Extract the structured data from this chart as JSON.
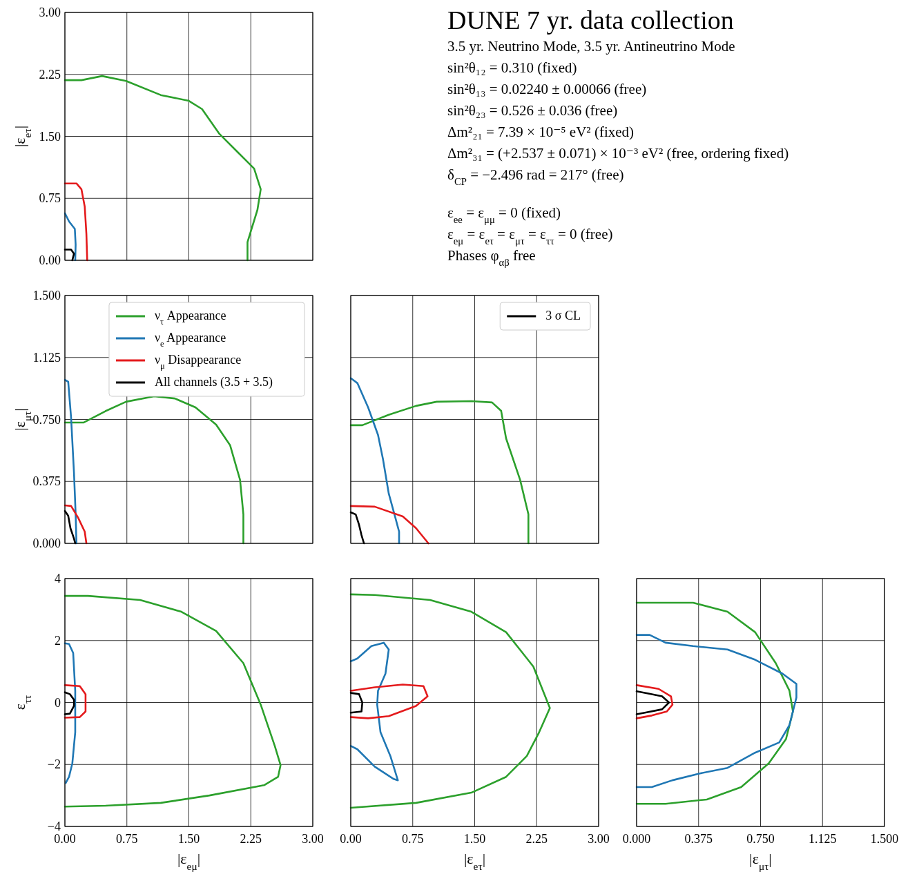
{
  "chart_data": [
    {
      "type": "line",
      "ylabel": "|ε$_{eτ}$|",
      "xlim": [
        0,
        3
      ],
      "xticks": [
        0,
        0.75,
        1.5,
        2.25,
        3
      ],
      "ylim": [
        0,
        3
      ],
      "yticks": [
        {
          "value": 0,
          "label": "0.00"
        },
        {
          "value": 0.75,
          "label": "0.75"
        },
        {
          "value": 1.5,
          "label": "1.50"
        },
        {
          "value": 2.25,
          "label": "2.25"
        },
        {
          "value": 3,
          "label": "3.00"
        }
      ],
      "grid": true,
      "tick_labels": "y",
      "series": [
        {
          "color": "#2ca02c",
          "x": [
            0,
            0.2,
            0.45,
            0.74,
            1.16,
            1.5,
            1.66,
            1.87,
            2.08,
            2.29,
            2.37,
            2.33,
            2.21,
            2.21
          ],
          "values": [
            2.18,
            2.18,
            2.23,
            2.17,
            2.0,
            1.93,
            1.83,
            1.53,
            1.32,
            1.11,
            0.86,
            0.61,
            0.22,
            0
          ]
        },
        {
          "color": "#1f77b4",
          "x": [
            0,
            0.05,
            0.12,
            0.13,
            0.125
          ],
          "values": [
            0.57,
            0.47,
            0.38,
            0.19,
            0
          ]
        },
        {
          "color": "#e41a1c",
          "x": [
            0,
            0.14,
            0.2,
            0.24,
            0.26,
            0.27
          ],
          "values": [
            0.93,
            0.93,
            0.86,
            0.65,
            0.32,
            0
          ]
        },
        {
          "color": "#000000",
          "x": [
            0,
            0.075,
            0.11,
            0.09
          ],
          "values": [
            0.13,
            0.13,
            0.08,
            0
          ]
        }
      ]
    },
    {
      "type": "other",
      "title": "DUNE 7 yr. data collection",
      "annotations": [
        "3.5 yr. Neutrino Mode, 3.5 yr. Antineutrino Mode",
        "sin²θ₁₂ = 0.310 (fixed)",
        "sin²θ₁₃ = 0.02240 ± 0.00066 (free)",
        "sin²θ₂₃ = 0.526 ± 0.036 (free)",
        "Δm²₂₁ = 7.39 × 10⁻⁵ eV² (fixed)",
        "Δm²₃₁ = (+2.537 ± 0.071) × 10⁻³ eV² (free, ordering fixed)",
        "δ$_{CP}$ = −2.496 rad = 217° (free)",
        "ε$_{ee}$ = ε$_{μμ}$ = 0 (fixed)",
        "ε$_{eμ}$ = ε$_{eτ}$ = ε$_{μτ}$ = ε$_{ττ}$ = 0 (free)",
        "Phases φ$_{αβ}$ free"
      ]
    },
    {
      "type": "line",
      "ylabel": "|ε$_{μτ}$|",
      "xlim": [
        0,
        3
      ],
      "xticks": [
        0,
        0.75,
        1.5,
        2.25,
        3
      ],
      "ylim": [
        0,
        1.5
      ],
      "yticks": [
        {
          "value": 0,
          "label": "0.000"
        },
        {
          "value": 0.375,
          "label": "0.375"
        },
        {
          "value": 0.75,
          "label": "0.750"
        },
        {
          "value": 1.125,
          "label": "1.125"
        },
        {
          "value": 1.5,
          "label": "1.500"
        }
      ],
      "grid": true,
      "tick_labels": "y",
      "legend": "top right",
      "series": [
        {
          "name": "ν$_{τ}$ Appearance",
          "color": "#2ca02c",
          "x": [
            0,
            0.225,
            0.49,
            0.74,
            1.08,
            1.33,
            1.58,
            1.83,
            2.0,
            2.12,
            2.16,
            2.16
          ],
          "values": [
            0.731,
            0.731,
            0.8,
            0.857,
            0.89,
            0.877,
            0.823,
            0.719,
            0.593,
            0.384,
            0.176,
            0
          ]
        },
        {
          "name": "ν$_{e}$ Appearance",
          "color": "#1f77b4",
          "x": [
            0,
            0.04,
            0.075,
            0.11,
            0.13,
            0.14
          ],
          "values": [
            0.99,
            0.978,
            0.76,
            0.426,
            0.176,
            0
          ]
        },
        {
          "name": "ν$_{μ}$ Disappearance",
          "color": "#e41a1c",
          "x": [
            0,
            0.075,
            0.16,
            0.24,
            0.26
          ],
          "values": [
            0.23,
            0.226,
            0.155,
            0.071,
            0
          ]
        },
        {
          "name": "All channels (3.5 + 3.5)",
          "color": "#000000",
          "x": [
            0,
            0.04,
            0.067,
            0.11,
            0.125
          ],
          "values": [
            0.196,
            0.167,
            0.092,
            0.029,
            0
          ]
        }
      ]
    },
    {
      "type": "line",
      "xlim": [
        0,
        3
      ],
      "xticks": [
        0,
        0.75,
        1.5,
        2.25,
        3
      ],
      "ylim": [
        0,
        1.5
      ],
      "yticks": [
        0,
        0.375,
        0.75,
        1.125,
        1.5
      ],
      "grid": true,
      "tick_labels": false,
      "legend": "top right",
      "series": [
        {
          "color": "#2ca02c",
          "x": [
            0,
            0.14,
            0.46,
            0.79,
            1.04,
            1.46,
            1.71,
            1.82,
            1.88,
            2.05,
            2.15,
            2.15
          ],
          "values": [
            0.715,
            0.715,
            0.778,
            0.832,
            0.857,
            0.861,
            0.853,
            0.802,
            0.635,
            0.384,
            0.176,
            0
          ]
        },
        {
          "color": "#1f77b4",
          "x": [
            0,
            0.08,
            0.21,
            0.33,
            0.39,
            0.46,
            0.54,
            0.585,
            0.585
          ],
          "values": [
            1.0,
            0.97,
            0.823,
            0.656,
            0.51,
            0.301,
            0.155,
            0.071,
            0
          ]
        },
        {
          "color": "#e41a1c",
          "x": [
            0,
            0.29,
            0.63,
            0.79,
            0.94
          ],
          "values": [
            0.226,
            0.222,
            0.163,
            0.092,
            0
          ]
        },
        {
          "name": "3 σ CL",
          "color": "#000000",
          "x": [
            0,
            0.06,
            0.1,
            0.13,
            0.16
          ],
          "values": [
            0.188,
            0.175,
            0.113,
            0.05,
            0
          ]
        }
      ]
    },
    {
      "type": "line",
      "xlabel": "|ε$_{eμ}$|",
      "ylabel": "ε$_{ττ}$",
      "xlim": [
        0,
        3
      ],
      "xticks": [
        {
          "value": 0,
          "label": "0.00"
        },
        {
          "value": 0.75,
          "label": "0.75"
        },
        {
          "value": 1.5,
          "label": "1.50"
        },
        {
          "value": 2.25,
          "label": "2.25"
        },
        {
          "value": 3,
          "label": "3.00"
        }
      ],
      "ylim": [
        -4,
        4
      ],
      "yticks": [
        {
          "value": -4,
          "label": "−4"
        },
        {
          "value": -2,
          "label": "−2"
        },
        0,
        2,
        4
      ],
      "grid": true,
      "series": [
        {
          "color": "#2ca02c",
          "x": [
            0,
            0.28,
            0.91,
            1.41,
            1.83,
            2.16,
            2.37,
            2.54,
            2.61,
            2.58,
            2.41,
            1.75,
            1.16,
            0.49,
            0
          ],
          "values": [
            3.44,
            3.44,
            3.31,
            2.93,
            2.31,
            1.27,
            -0.07,
            -1.4,
            -2.02,
            -2.4,
            -2.67,
            -3.0,
            -3.24,
            -3.33,
            -3.36
          ]
        },
        {
          "color": "#1f77b4",
          "x": [
            0,
            0.05,
            0.1,
            0.125,
            0.125,
            0.09,
            0.05,
            0.01
          ],
          "values": [
            1.91,
            1.89,
            1.6,
            0.38,
            -0.96,
            -1.96,
            -2.4,
            -2.6
          ]
        },
        {
          "color": "#e41a1c",
          "x": [
            0,
            0.18,
            0.25,
            0.25,
            0.18,
            0
          ],
          "values": [
            0.56,
            0.53,
            0.27,
            -0.29,
            -0.47,
            -0.49
          ]
        },
        {
          "color": "#000000",
          "x": [
            0,
            0.06,
            0.11,
            0.11,
            0.06,
            0
          ],
          "values": [
            0.33,
            0.27,
            0.09,
            -0.11,
            -0.36,
            -0.38
          ]
        }
      ]
    },
    {
      "type": "line",
      "xlabel": "|ε$_{eτ}$|",
      "xlim": [
        0,
        3
      ],
      "xticks": [
        {
          "value": 0,
          "label": "0.00"
        },
        {
          "value": 0.75,
          "label": "0.75"
        },
        {
          "value": 1.5,
          "label": "1.50"
        },
        {
          "value": 2.25,
          "label": "2.25"
        },
        {
          "value": 3,
          "label": "3.00"
        }
      ],
      "ylim": [
        -4,
        4
      ],
      "yticks": [
        -4,
        -2,
        0,
        2,
        4
      ],
      "grid": true,
      "tick_labels": "x",
      "series": [
        {
          "color": "#2ca02c",
          "x": [
            0,
            0.29,
            0.96,
            1.46,
            1.88,
            2.21,
            2.41,
            2.28,
            2.13,
            1.88,
            1.46,
            0.79,
            0
          ],
          "values": [
            3.49,
            3.47,
            3.31,
            2.93,
            2.27,
            1.16,
            -0.18,
            -0.96,
            -1.73,
            -2.4,
            -2.91,
            -3.24,
            -3.4
          ]
        },
        {
          "color": "#1f77b4",
          "x": [
            0,
            0.08,
            0.25,
            0.4,
            0.46,
            0.42,
            0.33,
            0.32,
            0.36,
            0.48,
            0.57,
            0.52,
            0.29,
            0.08,
            0
          ],
          "values": [
            1.33,
            1.42,
            1.82,
            1.93,
            1.71,
            0.93,
            0.38,
            -0.07,
            -0.96,
            -1.73,
            -2.51,
            -2.47,
            -2.07,
            -1.51,
            -1.4
          ]
        },
        {
          "color": "#e41a1c",
          "x": [
            0,
            0.29,
            0.63,
            0.88,
            0.93,
            0.79,
            0.46,
            0.21,
            0
          ],
          "values": [
            0.38,
            0.49,
            0.58,
            0.53,
            0.2,
            -0.11,
            -0.44,
            -0.51,
            -0.47
          ]
        },
        {
          "color": "#000000",
          "x": [
            0,
            0.1,
            0.14,
            0.13,
            0
          ],
          "values": [
            0.31,
            0.27,
            0,
            -0.29,
            -0.33
          ]
        }
      ]
    },
    {
      "type": "line",
      "xlabel": "|ε$_{μτ}$|",
      "xlim": [
        0,
        1.5
      ],
      "xticks": [
        {
          "value": 0,
          "label": "0.000"
        },
        {
          "value": 0.375,
          "label": "0.375"
        },
        {
          "value": 0.75,
          "label": "0.750"
        },
        {
          "value": 1.125,
          "label": "1.125"
        },
        {
          "value": 1.5,
          "label": "1.500"
        }
      ],
      "ylim": [
        -4,
        4
      ],
      "yticks": [
        -4,
        -2,
        0,
        2,
        4
      ],
      "grid": true,
      "tick_labels": "x",
      "series": [
        {
          "color": "#2ca02c",
          "x": [
            0,
            0.092,
            0.342,
            0.55,
            0.717,
            0.842,
            0.925,
            0.946,
            0.904,
            0.8,
            0.633,
            0.425,
            0.175,
            0
          ],
          "values": [
            3.22,
            3.22,
            3.22,
            2.93,
            2.27,
            1.27,
            0.38,
            -0.29,
            -1.18,
            -1.96,
            -2.73,
            -3.13,
            -3.27,
            -3.27
          ]
        },
        {
          "color": "#1f77b4",
          "x": [
            0,
            0.079,
            0.175,
            0.342,
            0.55,
            0.717,
            0.883,
            0.967,
            0.967,
            0.925,
            0.863,
            0.717,
            0.55,
            0.383,
            0.217,
            0.092,
            0
          ],
          "values": [
            2.18,
            2.18,
            1.93,
            1.82,
            1.71,
            1.38,
            0.93,
            0.6,
            0.16,
            -0.73,
            -1.29,
            -1.62,
            -2.11,
            -2.29,
            -2.51,
            -2.73,
            -2.73
          ]
        },
        {
          "color": "#e41a1c",
          "x": [
            0,
            0.133,
            0.208,
            0.217,
            0.183,
            0.092,
            0
          ],
          "values": [
            0.56,
            0.44,
            0.2,
            -0.07,
            -0.29,
            -0.42,
            -0.51
          ]
        },
        {
          "color": "#000000",
          "x": [
            0,
            0.071,
            0.154,
            0.196,
            0.154,
            0.05,
            0
          ],
          "values": [
            0.36,
            0.29,
            0.2,
            0,
            -0.22,
            -0.33,
            -0.38
          ]
        }
      ]
    }
  ]
}
